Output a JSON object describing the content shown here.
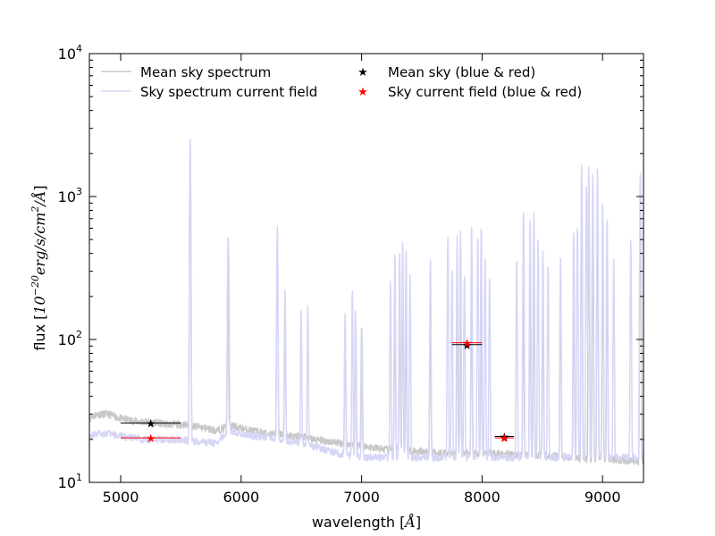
{
  "chart_data": {
    "type": "line",
    "xlabel": "wavelength [Å]",
    "xlabel_prefix": "wavelength [",
    "xlabel_unit": "Å",
    "xlabel_suffix": "]",
    "ylabel_prefix": "flux [",
    "ylabel_math": "10",
    "ylabel_exp": "−20",
    "ylabel_units": "erg/s/cm",
    "ylabel_units_exp": "2",
    "ylabel_tail": "/Å",
    "ylabel_suffix": "]",
    "xlim": [
      4740,
      9340
    ],
    "ylim": [
      10,
      10000
    ],
    "yscale": "log",
    "grid": false,
    "legend_placement": "top",
    "x_ticks": [
      {
        "value": 5000,
        "label": "5000"
      },
      {
        "value": 6000,
        "label": "6000"
      },
      {
        "value": 7000,
        "label": "7000"
      },
      {
        "value": 8000,
        "label": "8000"
      },
      {
        "value": 9000,
        "label": "9000"
      }
    ],
    "y_ticks": [
      {
        "value": 10,
        "base": "10",
        "exp": "1"
      },
      {
        "value": 100,
        "base": "10",
        "exp": "2"
      },
      {
        "value": 1000,
        "base": "10",
        "exp": "3"
      },
      {
        "value": 10000,
        "base": "10",
        "exp": "4"
      }
    ],
    "series": [
      {
        "name": "Mean sky spectrum",
        "kind": "line",
        "color": "#c8c8c8",
        "continuum": [
          [
            4740,
            28
          ],
          [
            4800,
            30
          ],
          [
            4900,
            30
          ],
          [
            5000,
            28
          ],
          [
            5100,
            27
          ],
          [
            5200,
            26.5
          ],
          [
            5300,
            26
          ],
          [
            5400,
            25.5
          ],
          [
            5500,
            25.5
          ],
          [
            5560,
            25
          ],
          [
            5700,
            24
          ],
          [
            5800,
            23
          ],
          [
            5900,
            25
          ],
          [
            6000,
            24
          ],
          [
            6100,
            23
          ],
          [
            6200,
            22
          ],
          [
            6300,
            22
          ],
          [
            6400,
            21
          ],
          [
            6500,
            21
          ],
          [
            6600,
            20
          ],
          [
            6700,
            19.5
          ],
          [
            6800,
            19
          ],
          [
            6900,
            18.5
          ],
          [
            7000,
            18
          ],
          [
            7100,
            17.5
          ],
          [
            7200,
            17
          ],
          [
            7300,
            17
          ],
          [
            7500,
            16.5
          ],
          [
            7700,
            16
          ],
          [
            7900,
            16
          ],
          [
            8100,
            16
          ],
          [
            8300,
            15.5
          ],
          [
            8500,
            15.5
          ],
          [
            8700,
            15
          ],
          [
            8900,
            14.5
          ],
          [
            9100,
            14.5
          ],
          [
            9340,
            14
          ]
        ],
        "lines": [
          {
            "x": 5577,
            "y": 2300
          },
          {
            "x": 5890,
            "y": 330
          },
          {
            "x": 6300,
            "y": 550
          },
          {
            "x": 6364,
            "y": 150
          },
          {
            "x": 6863,
            "y": 120
          },
          {
            "x": 6950,
            "y": 110
          },
          {
            "x": 7000,
            "y": 105
          },
          {
            "x": 7276,
            "y": 150
          },
          {
            "x": 7316,
            "y": 170
          },
          {
            "x": 7341,
            "y": 260
          },
          {
            "x": 7369,
            "y": 130
          },
          {
            "x": 7571,
            "y": 150
          },
          {
            "x": 7794,
            "y": 170
          },
          {
            "x": 7821,
            "y": 150
          },
          {
            "x": 7913,
            "y": 200
          },
          {
            "x": 7993,
            "y": 150
          },
          {
            "x": 8344,
            "y": 230
          },
          {
            "x": 8399,
            "y": 230
          },
          {
            "x": 8430,
            "y": 200
          },
          {
            "x": 8505,
            "y": 150
          },
          {
            "x": 8651,
            "y": 250
          },
          {
            "x": 8761,
            "y": 250
          },
          {
            "x": 8827,
            "y": 800
          },
          {
            "x": 8886,
            "y": 700
          },
          {
            "x": 8919,
            "y": 400
          },
          {
            "x": 8958,
            "y": 700
          },
          {
            "x": 9001,
            "y": 400
          },
          {
            "x": 9038,
            "y": 300
          },
          {
            "x": 9314,
            "y": 1000
          }
        ]
      },
      {
        "name": "Sky spectrum current field",
        "kind": "line",
        "color": "#d6d6f7",
        "continuum": [
          [
            4740,
            21
          ],
          [
            4800,
            22
          ],
          [
            4900,
            22
          ],
          [
            5000,
            21
          ],
          [
            5100,
            20.5
          ],
          [
            5200,
            20
          ],
          [
            5300,
            20
          ],
          [
            5400,
            20
          ],
          [
            5500,
            20
          ],
          [
            5560,
            19.5
          ],
          [
            5700,
            19
          ],
          [
            5800,
            19
          ],
          [
            5900,
            23
          ],
          [
            6000,
            22
          ],
          [
            6100,
            21
          ],
          [
            6200,
            21
          ],
          [
            6300,
            20
          ],
          [
            6400,
            19.5
          ],
          [
            6500,
            19
          ],
          [
            6600,
            18
          ],
          [
            6700,
            17
          ],
          [
            6800,
            16
          ],
          [
            6900,
            15.5
          ],
          [
            7000,
            15
          ],
          [
            7100,
            15
          ],
          [
            7200,
            15
          ],
          [
            7300,
            15
          ],
          [
            7500,
            15
          ],
          [
            7700,
            15
          ],
          [
            7900,
            15
          ],
          [
            8100,
            15
          ],
          [
            8300,
            15
          ],
          [
            8500,
            15
          ],
          [
            8700,
            15
          ],
          [
            8900,
            15
          ],
          [
            9100,
            15
          ],
          [
            9340,
            15
          ]
        ],
        "lines": [
          {
            "x": 5577,
            "y": 2500
          },
          {
            "x": 5890,
            "y": 380
          },
          {
            "x": 5896,
            "y": 320
          },
          {
            "x": 6300,
            "y": 600
          },
          {
            "x": 6364,
            "y": 210
          },
          {
            "x": 6498,
            "y": 140
          },
          {
            "x": 6553,
            "y": 160
          },
          {
            "x": 6863,
            "y": 140
          },
          {
            "x": 6923,
            "y": 210
          },
          {
            "x": 6949,
            "y": 150
          },
          {
            "x": 7003,
            "y": 110
          },
          {
            "x": 7240,
            "y": 250
          },
          {
            "x": 7276,
            "y": 390
          },
          {
            "x": 7316,
            "y": 400
          },
          {
            "x": 7341,
            "y": 460
          },
          {
            "x": 7369,
            "y": 420
          },
          {
            "x": 7402,
            "y": 280
          },
          {
            "x": 7571,
            "y": 360
          },
          {
            "x": 7716,
            "y": 500
          },
          {
            "x": 7750,
            "y": 300
          },
          {
            "x": 7794,
            "y": 520
          },
          {
            "x": 7821,
            "y": 560
          },
          {
            "x": 7853,
            "y": 270
          },
          {
            "x": 7913,
            "y": 620
          },
          {
            "x": 7964,
            "y": 510
          },
          {
            "x": 7993,
            "y": 600
          },
          {
            "x": 8025,
            "y": 350
          },
          {
            "x": 8062,
            "y": 260
          },
          {
            "x": 8288,
            "y": 350
          },
          {
            "x": 8344,
            "y": 780
          },
          {
            "x": 8399,
            "y": 690
          },
          {
            "x": 8430,
            "y": 750
          },
          {
            "x": 8465,
            "y": 500
          },
          {
            "x": 8505,
            "y": 400
          },
          {
            "x": 8548,
            "y": 320
          },
          {
            "x": 8651,
            "y": 370
          },
          {
            "x": 8761,
            "y": 560
          },
          {
            "x": 8791,
            "y": 610
          },
          {
            "x": 8827,
            "y": 1700
          },
          {
            "x": 8866,
            "y": 1200
          },
          {
            "x": 8886,
            "y": 1600
          },
          {
            "x": 8919,
            "y": 1400
          },
          {
            "x": 8958,
            "y": 1550
          },
          {
            "x": 9001,
            "y": 900
          },
          {
            "x": 9038,
            "y": 700
          },
          {
            "x": 9093,
            "y": 350
          },
          {
            "x": 9235,
            "y": 500
          },
          {
            "x": 9314,
            "y": 1500
          }
        ]
      },
      {
        "name": "Mean sky (blue & red)",
        "kind": "marker",
        "color": "#000000",
        "marker": "star",
        "points": [
          {
            "x": 5250,
            "y": 26,
            "xerr": 250
          },
          {
            "x": 7875,
            "y": 92,
            "xerr": 125
          },
          {
            "x": 8185,
            "y": 21,
            "xerr": 80
          }
        ]
      },
      {
        "name": "Sky current field (blue & red)",
        "kind": "marker",
        "color": "#ff0000",
        "marker": "star",
        "points": [
          {
            "x": 5250,
            "y": 20.5,
            "xerr": 250
          },
          {
            "x": 7875,
            "y": 95,
            "xerr": 125
          },
          {
            "x": 8185,
            "y": 20.5,
            "xerr": 80
          }
        ]
      }
    ]
  }
}
